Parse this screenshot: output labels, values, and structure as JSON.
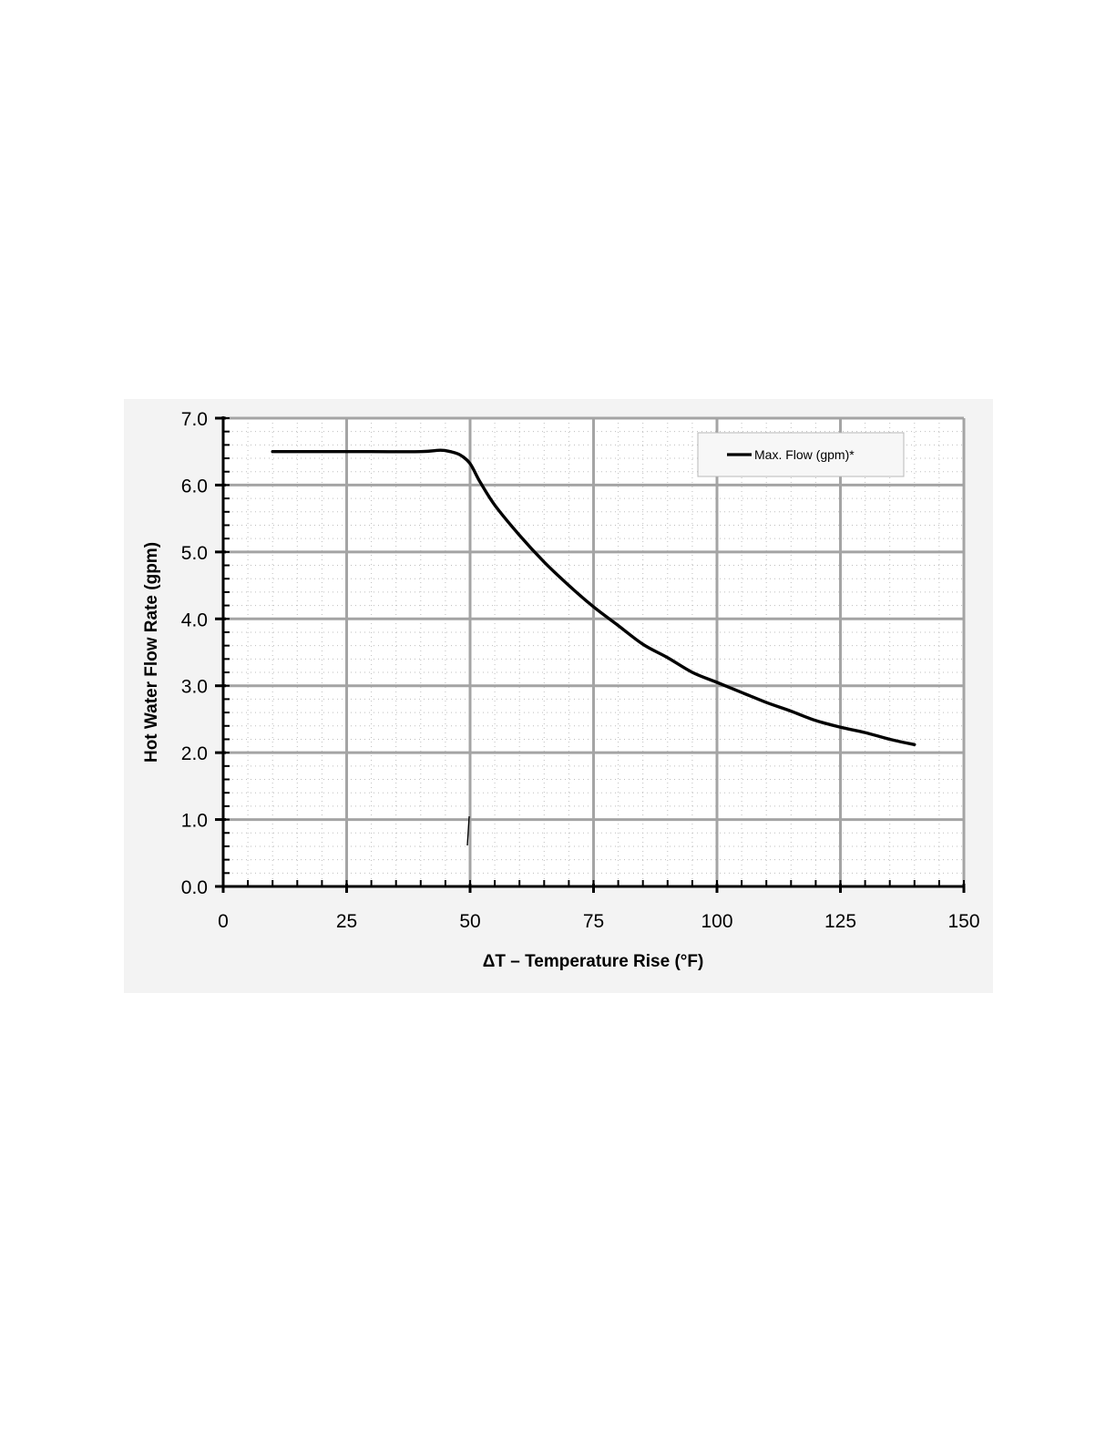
{
  "chart_data": {
    "type": "line",
    "xlabel": "ΔT – Temperature Rise (°F)",
    "ylabel": "Hot Water Flow Rate (gpm)",
    "xlim": [
      0,
      150
    ],
    "ylim": [
      0,
      7
    ],
    "x_ticks": [
      "0",
      "25",
      "50",
      "75",
      "100",
      "125",
      "150"
    ],
    "y_ticks": [
      "0.0",
      "1.0",
      "2.0",
      "3.0",
      "4.0",
      "5.0",
      "6.0",
      "7.0"
    ],
    "x_tick_values": [
      0,
      25,
      50,
      75,
      100,
      125,
      150
    ],
    "y_tick_values": [
      0,
      1,
      2,
      3,
      4,
      5,
      6,
      7
    ],
    "grid": true,
    "legend_position": "top-right",
    "series": [
      {
        "name": "Max. Flow (gpm)*",
        "color": "#000000",
        "x": [
          10,
          20,
          30,
          40,
          44,
          46,
          48,
          50,
          52,
          55,
          60,
          65,
          70,
          75,
          80,
          85,
          90,
          95,
          100,
          105,
          110,
          115,
          120,
          125,
          130,
          135,
          140
        ],
        "y": [
          6.5,
          6.5,
          6.5,
          6.5,
          6.52,
          6.5,
          6.45,
          6.32,
          6.05,
          5.7,
          5.25,
          4.85,
          4.5,
          4.18,
          3.9,
          3.62,
          3.42,
          3.2,
          3.05,
          2.9,
          2.75,
          2.62,
          2.48,
          2.38,
          2.3,
          2.2,
          2.12
        ]
      }
    ]
  }
}
